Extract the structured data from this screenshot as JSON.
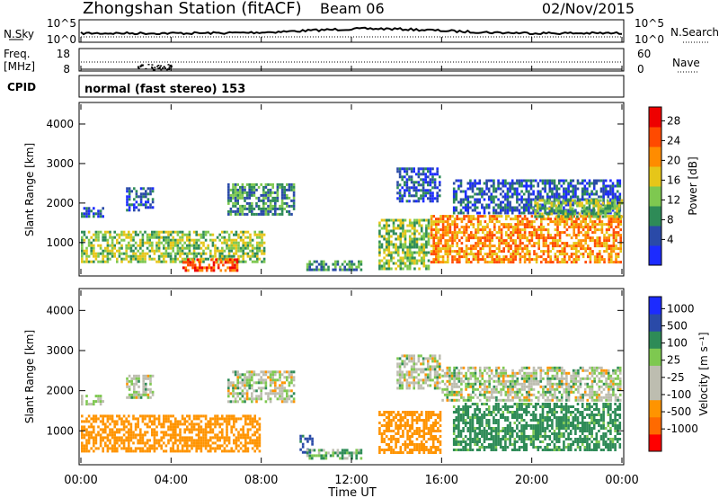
{
  "header": {
    "station": "Zhongshan Station (fitACF)",
    "beam": "Beam 06",
    "date": "02/Nov/2015"
  },
  "strips": {
    "nsky_label": "N.Sky",
    "nsearch_label": "N.Search",
    "noise_ticks_left": [
      "10^5",
      "10^0"
    ],
    "noise_ticks_right": [
      "10^5",
      "10^0"
    ],
    "freq_label_1": "Freq.",
    "freq_label_2": "[MHz]",
    "freq_ticks": [
      "18",
      "8"
    ],
    "nave_label": "Nave",
    "nave_ticks": [
      "60",
      "0"
    ],
    "cpid_label": "CPID",
    "cpid_text": "normal (fast stereo) 153"
  },
  "colors": {
    "power": [
      "#1c2bff",
      "#2a4aa8",
      "#2e8b57",
      "#7ec850",
      "#e6c619",
      "#ff8c00",
      "#ff4a00",
      "#ee0000"
    ],
    "velocity": [
      "#ff0000",
      "#ff6a00",
      "#ff9400",
      "#bdbdb0",
      "#bdbdb0",
      "#7ec850",
      "#2e8b57",
      "#2a4aa8",
      "#1c2bff"
    ]
  },
  "chart_data": [
    {
      "type": "heatmap",
      "name": "power",
      "ylabel": "Slant Range [km]",
      "ylim": [
        200,
        4500
      ],
      "yticks": [
        "4000",
        "3000",
        "2000",
        "1000"
      ],
      "xlim": [
        0,
        24
      ],
      "colorbar": {
        "label": "Power [dB]",
        "ticks": [
          "28",
          "24",
          "20",
          "16",
          "12",
          "8",
          "4"
        ],
        "range": [
          0,
          32
        ]
      },
      "regions": [
        {
          "t": [
            0,
            1.0
          ],
          "r": [
            1600,
            1900
          ],
          "level": 1
        },
        {
          "t": [
            0,
            8.2
          ],
          "r": [
            500,
            1300
          ],
          "level": 3
        },
        {
          "t": [
            4.5,
            7.0
          ],
          "r": [
            250,
            600
          ],
          "level": 6
        },
        {
          "t": [
            2.0,
            3.2
          ],
          "r": [
            1800,
            2400
          ],
          "level": 1
        },
        {
          "t": [
            6.5,
            9.5
          ],
          "r": [
            1700,
            2500
          ],
          "level": 2
        },
        {
          "t": [
            10.0,
            12.5
          ],
          "r": [
            300,
            550
          ],
          "level": 2
        },
        {
          "t": [
            13.2,
            15.5
          ],
          "r": [
            300,
            1600
          ],
          "level": 3
        },
        {
          "t": [
            14.0,
            16.0
          ],
          "r": [
            2000,
            2900
          ],
          "level": 1
        },
        {
          "t": [
            15.5,
            24.0
          ],
          "r": [
            500,
            1700
          ],
          "level": 5
        },
        {
          "t": [
            16.5,
            24.0
          ],
          "r": [
            1700,
            2600
          ],
          "level": 1
        },
        {
          "t": [
            20.0,
            24.0
          ],
          "r": [
            1600,
            2100
          ],
          "level": 3
        }
      ]
    },
    {
      "type": "heatmap",
      "name": "velocity",
      "ylabel": "Slant Range [km]",
      "xlabel": "Time UT",
      "ylim": [
        200,
        4500
      ],
      "yticks": [
        "4000",
        "3000",
        "2000",
        "1000"
      ],
      "xticks": [
        "00:00",
        "04:00",
        "08:00",
        "12:00",
        "16:00",
        "20:00",
        "00:00"
      ],
      "xlim": [
        0,
        24
      ],
      "colorbar": {
        "label": "Velocity [m s⁻¹]",
        "ticks": [
          "1000",
          "500",
          "100",
          "25",
          "-25",
          "-100",
          "-500",
          "-1000"
        ],
        "range": [
          -1200,
          1200
        ]
      },
      "regions": [
        {
          "t": [
            0,
            1.0
          ],
          "r": [
            1600,
            1900
          ],
          "v": 0
        },
        {
          "t": [
            0,
            8.0
          ],
          "r": [
            450,
            1400
          ],
          "v": -300
        },
        {
          "t": [
            2.0,
            3.2
          ],
          "r": [
            1800,
            2400
          ],
          "v": 0
        },
        {
          "t": [
            6.5,
            9.5
          ],
          "r": [
            1700,
            2500
          ],
          "v": 0
        },
        {
          "t": [
            9.7,
            10.3
          ],
          "r": [
            400,
            900
          ],
          "v": 600
        },
        {
          "t": [
            10.0,
            12.5
          ],
          "r": [
            300,
            550
          ],
          "v": 120
        },
        {
          "t": [
            13.2,
            16.0
          ],
          "r": [
            400,
            1500
          ],
          "v": -300
        },
        {
          "t": [
            14.0,
            16.0
          ],
          "r": [
            2000,
            2900
          ],
          "v": 0
        },
        {
          "t": [
            16.0,
            24.0
          ],
          "r": [
            1700,
            2600
          ],
          "v": 0
        },
        {
          "t": [
            16.5,
            24.0
          ],
          "r": [
            500,
            1700
          ],
          "v": 200
        }
      ]
    }
  ]
}
